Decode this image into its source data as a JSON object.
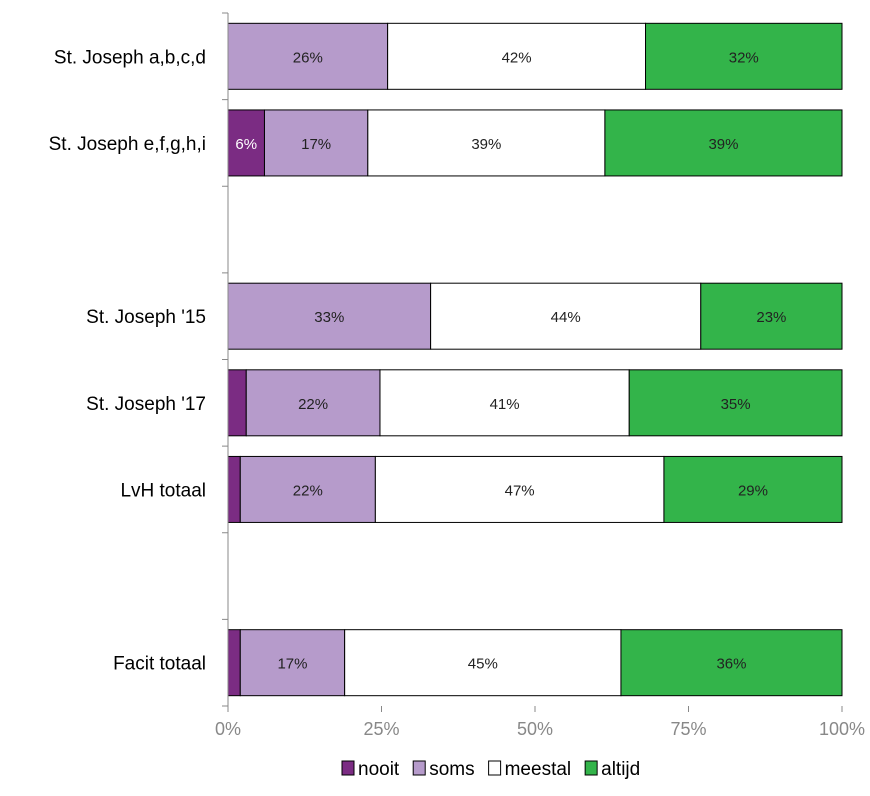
{
  "chart_data": {
    "type": "bar",
    "orientation": "horizontal",
    "stacked": true,
    "percent_stacked": true,
    "categories": [
      "St. Joseph a,b,c,d",
      "St. Joseph e,f,g,h,i",
      "",
      "St. Joseph '15",
      "St. Joseph '17",
      "LvH totaal",
      "",
      "Facit totaal"
    ],
    "series": [
      {
        "name": "nooit",
        "color": "#7B2C83",
        "values": [
          0,
          6,
          null,
          0,
          3,
          2,
          null,
          2
        ],
        "labels": [
          "",
          "6%",
          "",
          "",
          "",
          "",
          "",
          ""
        ]
      },
      {
        "name": "soms",
        "color": "#B69BCB",
        "values": [
          26,
          17,
          null,
          33,
          22,
          22,
          null,
          17
        ],
        "labels": [
          "26%",
          "17%",
          "",
          "33%",
          "22%",
          "22%",
          "",
          "17%"
        ]
      },
      {
        "name": "meestal",
        "color": "#FFFFFF",
        "values": [
          42,
          39,
          null,
          44,
          41,
          47,
          null,
          45
        ],
        "labels": [
          "42%",
          "39%",
          "",
          "44%",
          "41%",
          "47%",
          "",
          "45%"
        ]
      },
      {
        "name": "altijd",
        "color": "#33B44A",
        "values": [
          32,
          39,
          null,
          23,
          35,
          29,
          null,
          36
        ],
        "labels": [
          "32%",
          "39%",
          "",
          "23%",
          "35%",
          "29%",
          "",
          "36%"
        ]
      }
    ],
    "xlim": [
      0,
      100
    ],
    "xticks": [
      "0%",
      "25%",
      "50%",
      "75%",
      "100%"
    ],
    "grid": false,
    "legend_position": "bottom",
    "title": "",
    "xlabel": "",
    "ylabel": ""
  }
}
